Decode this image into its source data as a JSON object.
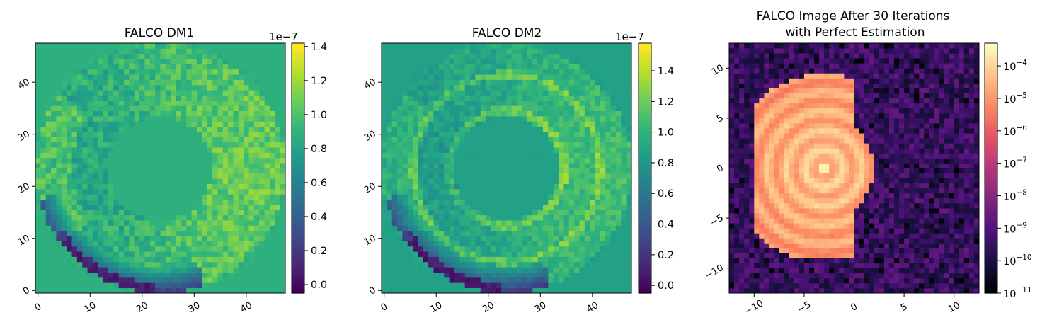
{
  "chart_data": [
    {
      "type": "heatmap",
      "title": "FALCO DM1",
      "xlabel": "",
      "ylabel": "",
      "xlim": [
        -0.5,
        47.5
      ],
      "ylim": [
        -0.5,
        47.5
      ],
      "xticks": [
        "0",
        "10",
        "20",
        "30",
        "40"
      ],
      "yticks": [
        "0",
        "10",
        "20",
        "30",
        "40"
      ],
      "colormap": "viridis",
      "clim": [
        -0.05,
        1.42
      ],
      "colorbar_ticks": [
        "0.0",
        "0.2",
        "0.4",
        "0.6",
        "0.8",
        "1.0",
        "1.2",
        "1.4"
      ],
      "colorbar_offset": "1e−7",
      "grid": false,
      "description_values": {
        "outside_pupil": 0.88,
        "annulus_inner_radius": 10,
        "annulus_outer_radius": 24
      }
    },
    {
      "type": "heatmap",
      "title": "FALCO DM2",
      "xlabel": "",
      "ylabel": "",
      "xlim": [
        -0.5,
        47.5
      ],
      "ylim": [
        -0.5,
        47.5
      ],
      "xticks": [
        "0",
        "10",
        "20",
        "30",
        "40"
      ],
      "yticks": [
        "0",
        "10",
        "20",
        "30",
        "40"
      ],
      "colormap": "viridis",
      "clim": [
        -0.05,
        1.58
      ],
      "colorbar_ticks": [
        "0.0",
        "0.2",
        "0.4",
        "0.6",
        "0.8",
        "1.0",
        "1.2",
        "1.4"
      ],
      "colorbar_offset": "1e−7",
      "grid": false,
      "description_values": {
        "outside_pupil": 0.88,
        "annulus_inner_radius": 10,
        "annulus_outer_radius": 24
      }
    },
    {
      "type": "heatmap",
      "title_line1": "FALCO Image After 30 Iterations",
      "title_line2": "with Perfect Estimation",
      "xlabel": "",
      "ylabel": "",
      "xlim": [
        -12.5,
        12.5
      ],
      "ylim": [
        -12.5,
        12.5
      ],
      "xticks": [
        "−10",
        "−5",
        "0",
        "5",
        "10"
      ],
      "yticks": [
        "−10",
        "−5",
        "0",
        "5",
        "10"
      ],
      "colormap": "magma",
      "log_scale": true,
      "clim_log10": [
        -11,
        -3.3
      ],
      "colorbar_ticks": [
        {
          "base": "10",
          "exp": "−11"
        },
        {
          "base": "10",
          "exp": "−10"
        },
        {
          "base": "10",
          "exp": "−9"
        },
        {
          "base": "10",
          "exp": "−8"
        },
        {
          "base": "10",
          "exp": "−7"
        },
        {
          "base": "10",
          "exp": "−6"
        },
        {
          "base": "10",
          "exp": "−5"
        },
        {
          "base": "10",
          "exp": "−4"
        }
      ],
      "grid": false,
      "description_values": {
        "dark_hole_background_log10": -9.5,
        "bright_region_peak_log10": -3.5
      }
    }
  ]
}
